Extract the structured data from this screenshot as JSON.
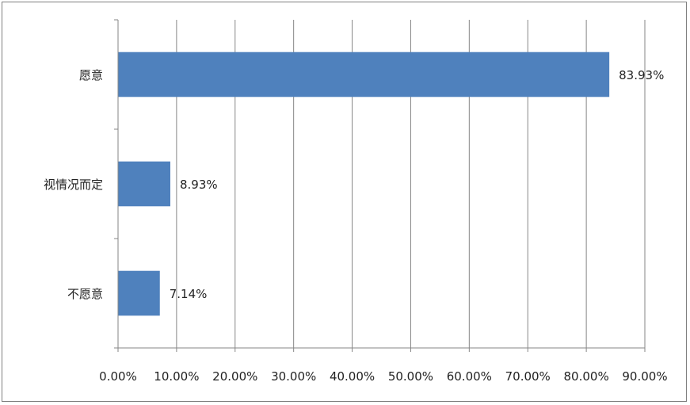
{
  "chart_data": {
    "type": "bar",
    "orientation": "horizontal",
    "categories": [
      "愿意",
      "视情况而定",
      "不愿意"
    ],
    "values": [
      83.93,
      8.93,
      7.14
    ],
    "data_labels": [
      "83.93%",
      "8.93%",
      "7.14%"
    ],
    "title": "",
    "xlabel": "",
    "ylabel": "",
    "xlim": [
      0,
      90
    ],
    "x_ticks": [
      0,
      10,
      20,
      30,
      40,
      50,
      60,
      70,
      80,
      90
    ],
    "x_tick_labels": [
      "0.00%",
      "10.00%",
      "20.00%",
      "30.00%",
      "40.00%",
      "50.00%",
      "60.00%",
      "70.00%",
      "80.00%",
      "90.00%"
    ],
    "grid": "vertical",
    "legend": "none",
    "colors": {
      "bar": "#4f81bd",
      "grid": "#868686",
      "axis": "#868686"
    }
  }
}
